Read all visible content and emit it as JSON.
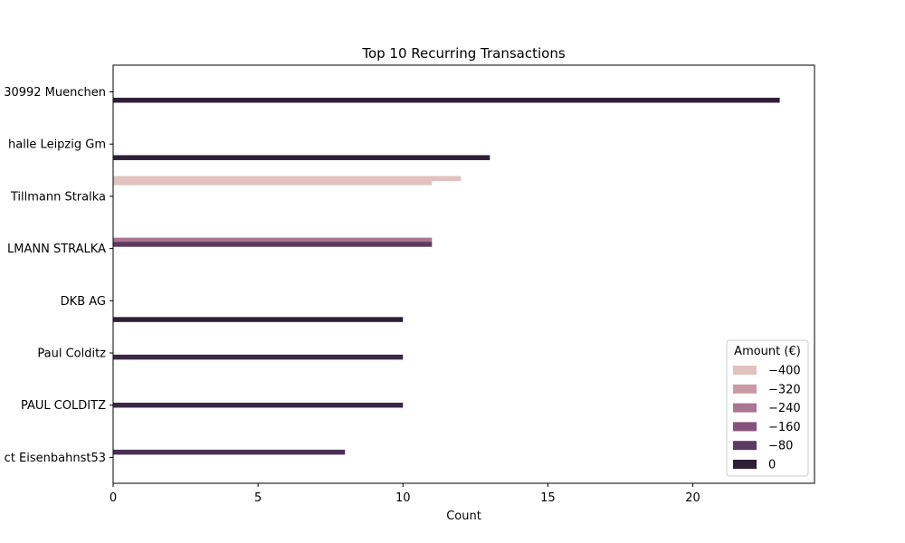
{
  "chart_data": {
    "type": "bar",
    "orientation": "horizontal",
    "title": "Top 10 Recurring Transactions",
    "xlabel": "Count",
    "ylabel": "",
    "xlim": [
      0,
      24.2
    ],
    "xticks": [
      0,
      5,
      10,
      15,
      20
    ],
    "categories": [
      "30992 Muenchen",
      "halle Leipzig Gm",
      "Tillmann Stralka",
      "LMANN STRALKA",
      "DKB AG",
      "Paul Colditz",
      "PAUL COLDITZ",
      "ct Eisenbahnst53"
    ],
    "legend": {
      "title": "Amount (€)",
      "placement": "lower right",
      "entries": [
        {
          "label": "−400",
          "color": "#e2c2c0"
        },
        {
          "label": "−320",
          "color": "#c99aa6"
        },
        {
          "label": "−240",
          "color": "#aa7591"
        },
        {
          "label": "−160",
          "color": "#85537c"
        },
        {
          "label": "−80",
          "color": "#5c3b62"
        },
        {
          "label": "0",
          "color": "#2e1f37"
        }
      ]
    },
    "bars": [
      {
        "category": "30992 Muenchen",
        "offset": 0.16,
        "value": 23,
        "color": "#2e1f37"
      },
      {
        "category": "halle Leipzig Gm",
        "offset": 0.26,
        "value": 13,
        "color": "#2e1f37"
      },
      {
        "category": "Tillmann Stralka",
        "offset": -0.34,
        "value": 12,
        "color": "#e2c2c0"
      },
      {
        "category": "Tillmann Stralka",
        "offset": -0.26,
        "value": 11,
        "color": "#e2c2c0"
      },
      {
        "category": "LMANN STRALKA",
        "offset": -0.16,
        "value": 11,
        "color": "#aa7591"
      },
      {
        "category": "LMANN STRALKA",
        "offset": -0.08,
        "value": 11,
        "color": "#5c3b62"
      },
      {
        "category": "DKB AG",
        "offset": 0.36,
        "value": 10,
        "color": "#2e1f37"
      },
      {
        "category": "Paul Colditz",
        "offset": 0.08,
        "value": 10,
        "color": "#3b2845"
      },
      {
        "category": "PAUL COLDITZ",
        "offset": 0.0,
        "value": 10,
        "color": "#3b2845"
      },
      {
        "category": "ct Eisenbahnst53",
        "offset": -0.1,
        "value": 8,
        "color": "#4a3055"
      }
    ]
  }
}
